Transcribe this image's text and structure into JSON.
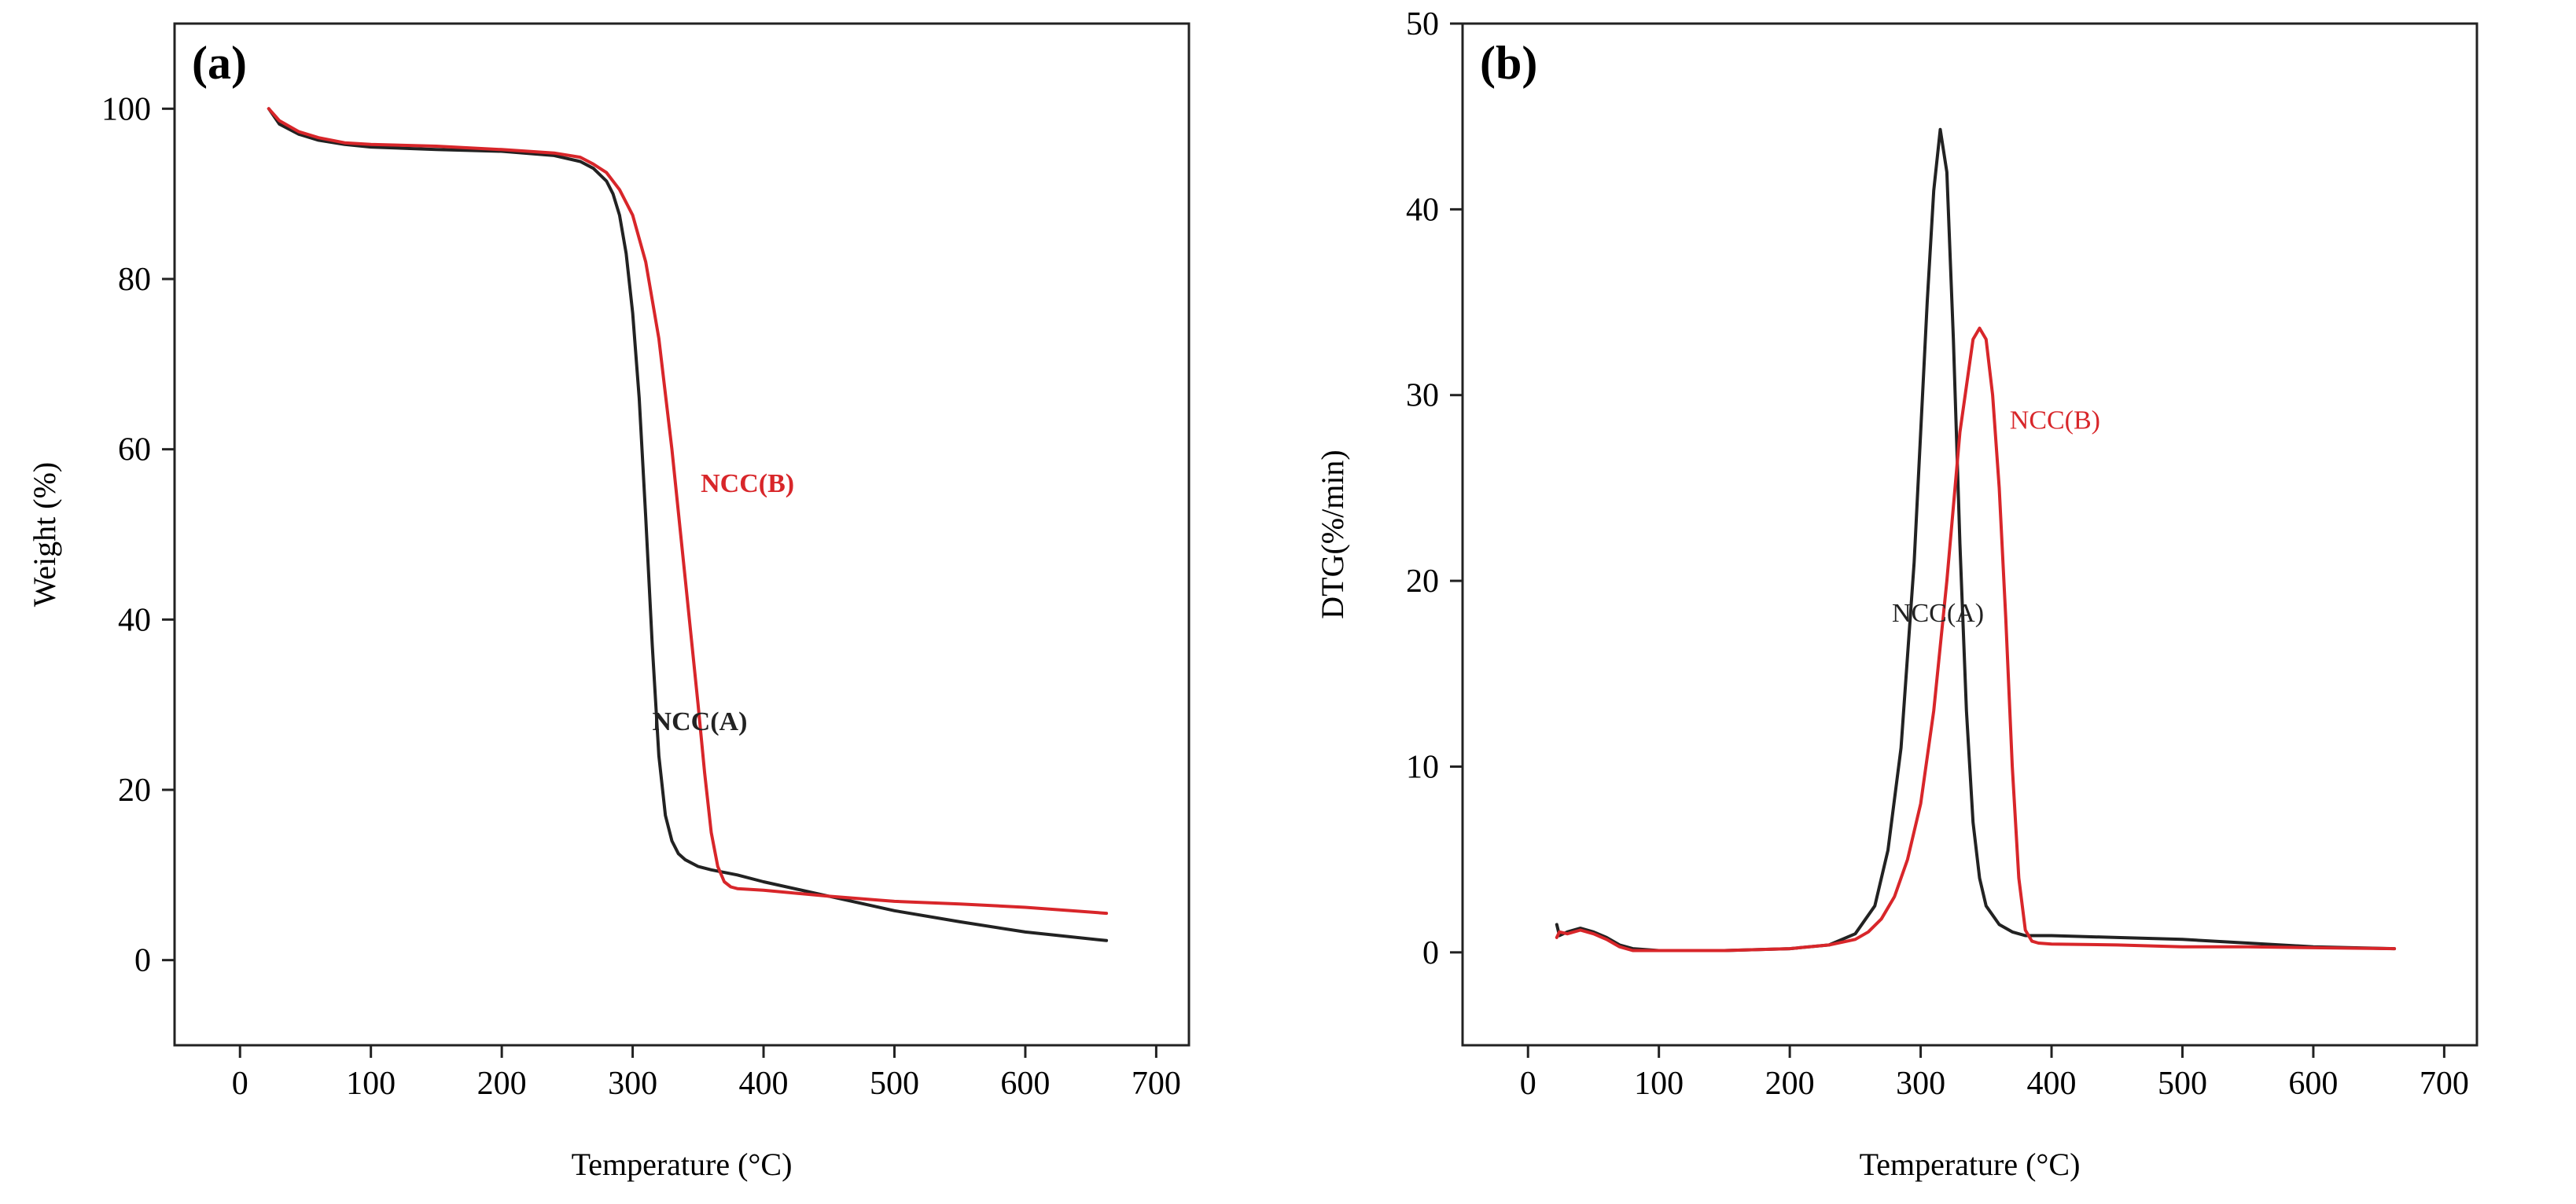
{
  "chart_data": [
    {
      "type": "line",
      "panel_label": "(a)",
      "xlabel": "Temperature (°C)",
      "ylabel": "Weight (%)",
      "xlim": [
        -50,
        725
      ],
      "ylim": [
        -10,
        110
      ],
      "xticks": [
        0,
        100,
        200,
        300,
        400,
        500,
        600,
        700
      ],
      "yticks": [
        0,
        20,
        40,
        60,
        80,
        100
      ],
      "series": [
        {
          "name": "NCC(A)",
          "color": "#222222",
          "label_at": [
            315,
            27
          ],
          "x": [
            22,
            30,
            45,
            60,
            80,
            100,
            150,
            200,
            240,
            260,
            270,
            280,
            285,
            290,
            295,
            300,
            305,
            310,
            315,
            320,
            325,
            330,
            335,
            340,
            350,
            360,
            380,
            400,
            450,
            500,
            550,
            600,
            662
          ],
          "y": [
            100,
            98.2,
            97,
            96.3,
            95.8,
            95.5,
            95.2,
            95,
            94.5,
            93.8,
            93,
            91.5,
            90,
            87.5,
            83,
            76,
            66,
            52,
            37,
            24,
            17,
            14,
            12.5,
            11.8,
            11,
            10.6,
            10,
            9.2,
            7.5,
            5.8,
            4.5,
            3.3,
            2.3
          ]
        },
        {
          "name": "NCC(B)",
          "color": "#d8262a",
          "label_at": [
            352,
            55
          ],
          "x": [
            22,
            30,
            45,
            60,
            80,
            100,
            150,
            200,
            240,
            260,
            270,
            280,
            290,
            300,
            310,
            320,
            330,
            340,
            350,
            355,
            360,
            365,
            370,
            375,
            380,
            390,
            400,
            450,
            500,
            550,
            600,
            662
          ],
          "y": [
            100,
            98.6,
            97.3,
            96.6,
            96,
            95.8,
            95.6,
            95.2,
            94.8,
            94.3,
            93.5,
            92.5,
            90.5,
            87.5,
            82,
            73,
            60,
            45,
            30,
            22,
            15,
            11,
            9.2,
            8.6,
            8.4,
            8.3,
            8.2,
            7.5,
            6.9,
            6.6,
            6.2,
            5.5
          ]
        }
      ]
    },
    {
      "type": "line",
      "panel_label": "(b)",
      "xlabel": "Temperature (°C)",
      "ylabel": "DTG(%/min)",
      "xlim": [
        -50,
        725
      ],
      "ylim": [
        -5,
        50
      ],
      "xticks": [
        0,
        100,
        200,
        300,
        400,
        500,
        600,
        700
      ],
      "yticks": [
        0,
        10,
        20,
        30,
        40,
        50
      ],
      "series": [
        {
          "name": "NCC(A)",
          "color": "#222222",
          "label_at": [
            278,
            17.8
          ],
          "x": [
            22,
            24,
            30,
            40,
            50,
            60,
            70,
            80,
            100,
            150,
            200,
            230,
            250,
            265,
            275,
            285,
            295,
            300,
            305,
            310,
            315,
            320,
            325,
            330,
            335,
            340,
            345,
            350,
            360,
            370,
            380,
            400,
            450,
            500,
            550,
            600,
            662
          ],
          "y": [
            1.5,
            0.9,
            1.1,
            1.3,
            1.1,
            0.8,
            0.4,
            0.2,
            0.1,
            0.1,
            0.2,
            0.4,
            1.0,
            2.5,
            5.5,
            11,
            21,
            28,
            35,
            41,
            44.3,
            42,
            33,
            22,
            13,
            7,
            4,
            2.5,
            1.5,
            1.1,
            0.9,
            0.9,
            0.8,
            0.7,
            0.5,
            0.3,
            0.2
          ]
        },
        {
          "name": "NCC(B)",
          "color": "#d8262a",
          "label_at": [
            368,
            28.2
          ],
          "x": [
            22,
            24,
            30,
            40,
            50,
            60,
            70,
            80,
            100,
            150,
            200,
            230,
            250,
            260,
            270,
            280,
            290,
            300,
            310,
            320,
            330,
            340,
            345,
            350,
            355,
            360,
            365,
            370,
            375,
            380,
            385,
            390,
            400,
            450,
            500,
            550,
            600,
            662
          ],
          "y": [
            0.8,
            1.1,
            1.0,
            1.2,
            1.0,
            0.7,
            0.3,
            0.1,
            0.1,
            0.1,
            0.2,
            0.4,
            0.7,
            1.1,
            1.8,
            3,
            5,
            8,
            13,
            20,
            28,
            33,
            33.6,
            33,
            30,
            25,
            18,
            10,
            4,
            1.2,
            0.6,
            0.5,
            0.45,
            0.4,
            0.3,
            0.3,
            0.25,
            0.2
          ]
        }
      ]
    }
  ]
}
